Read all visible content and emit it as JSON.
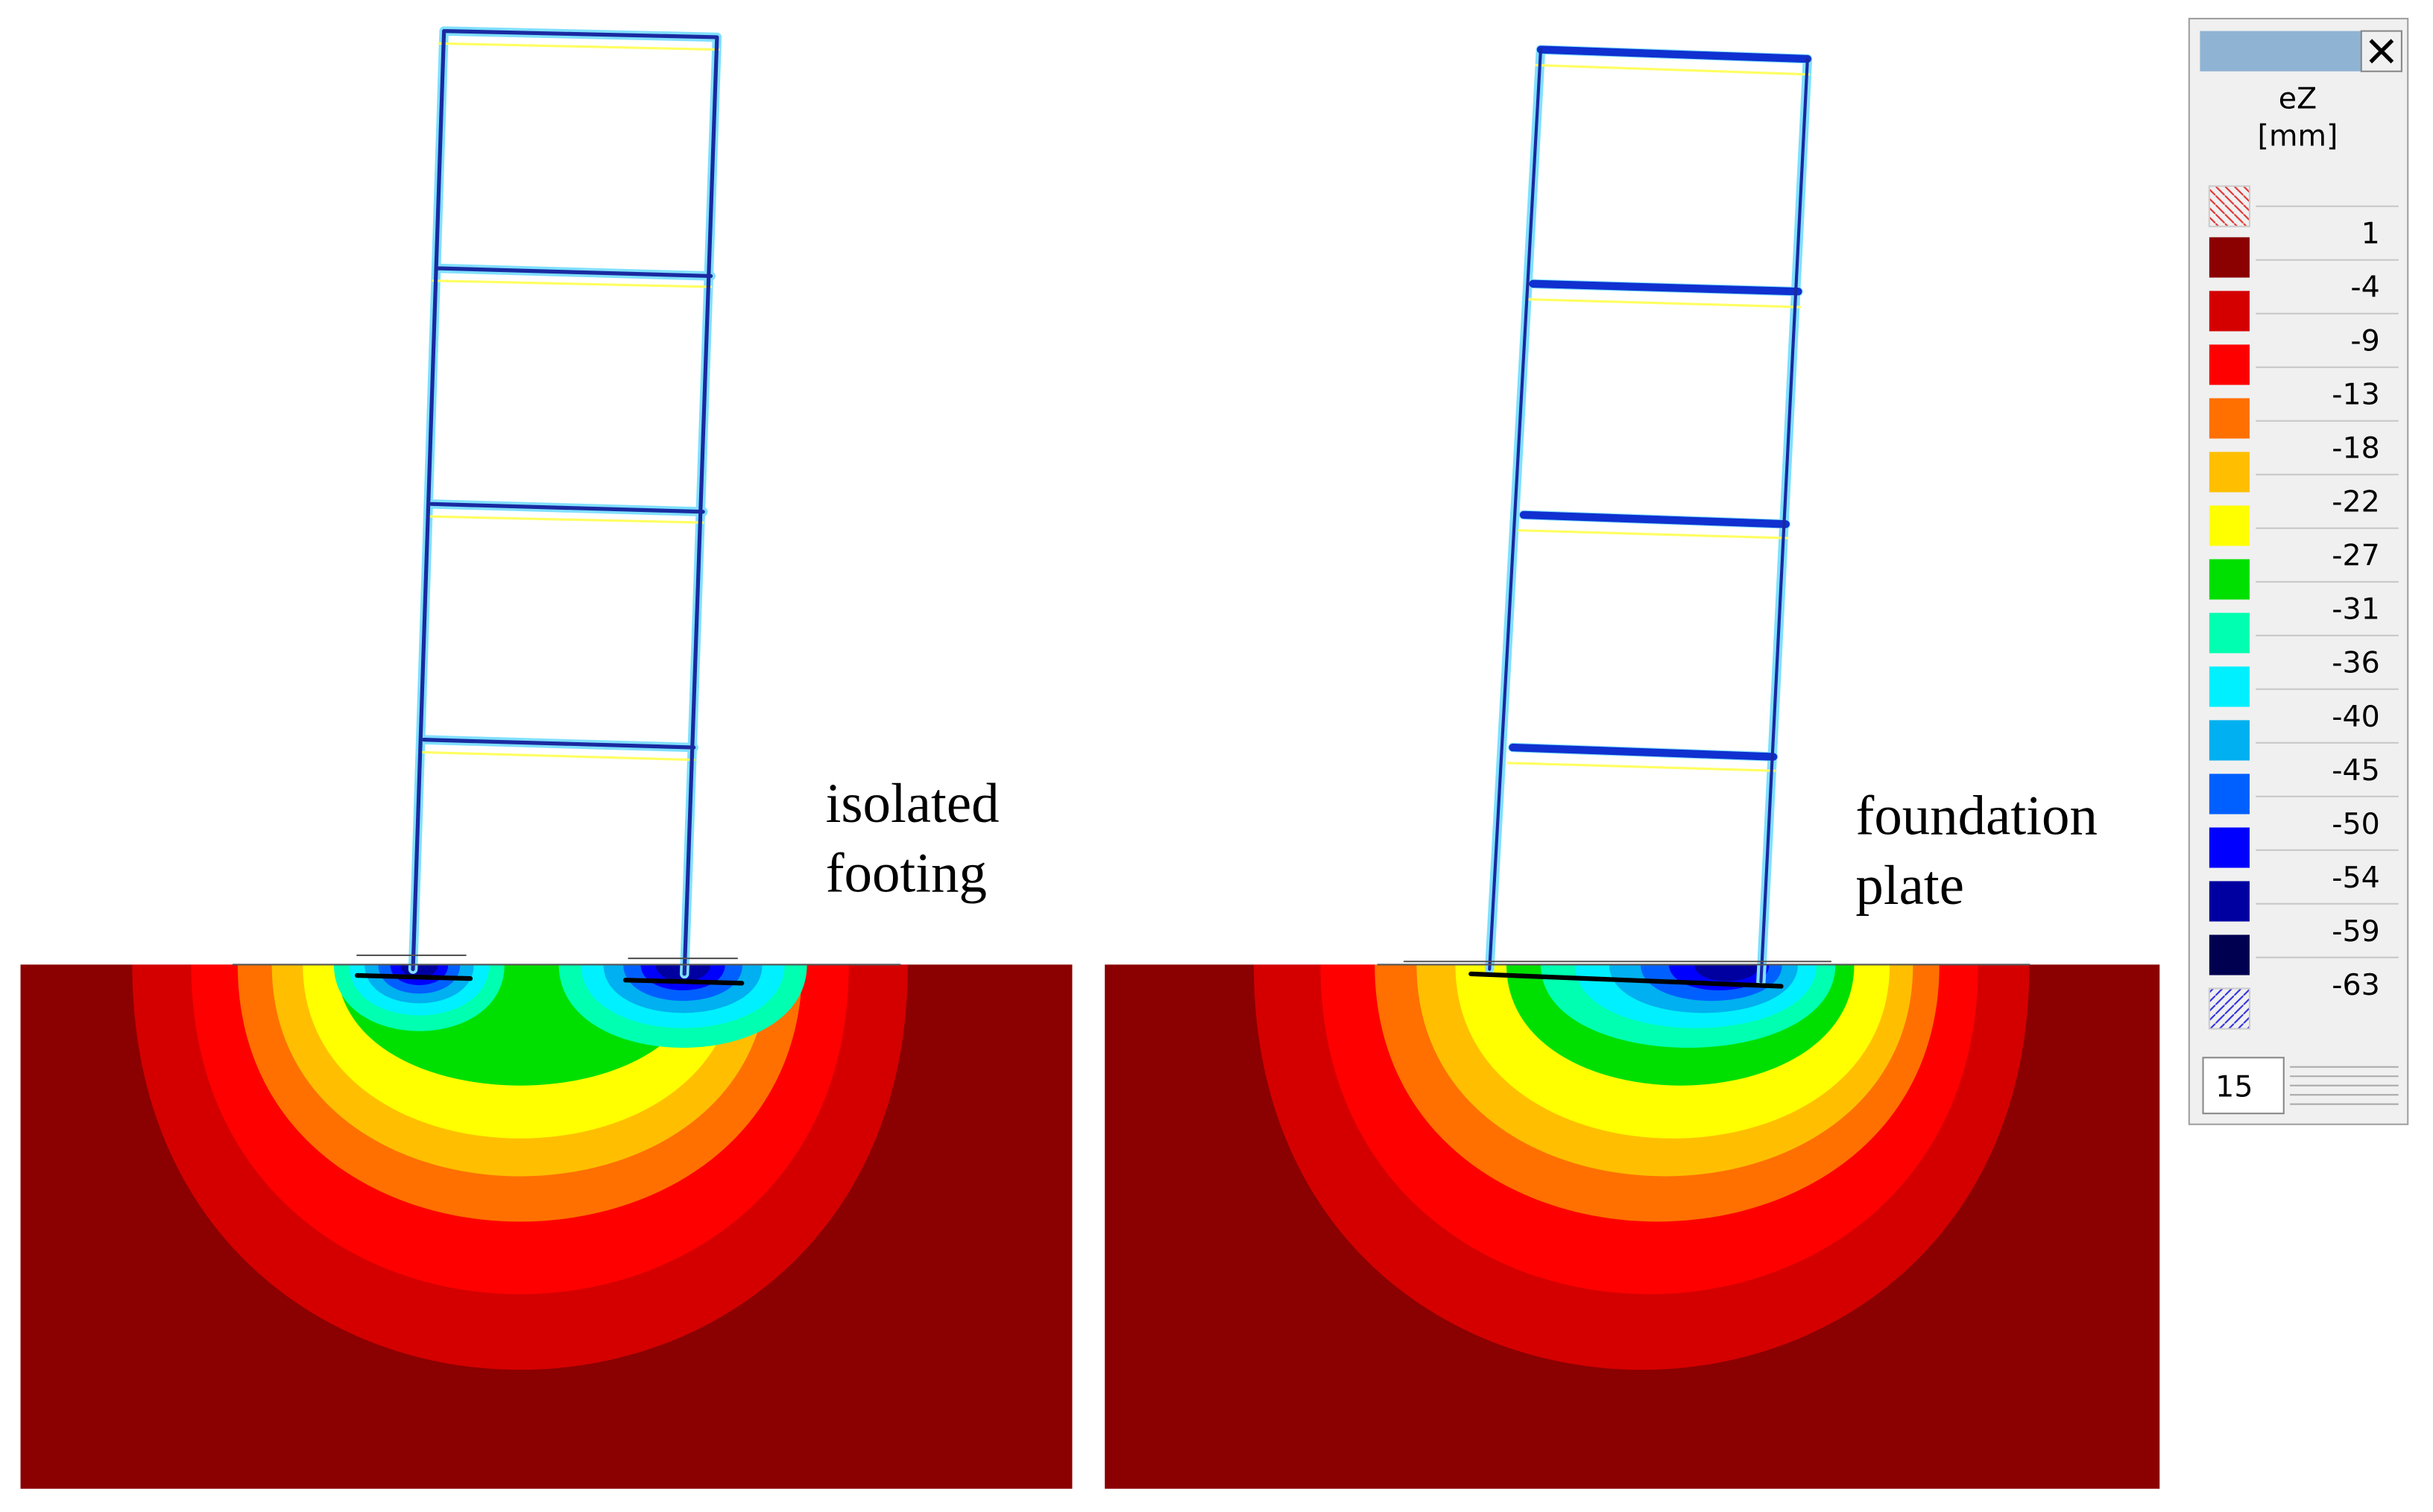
{
  "annotations": {
    "left": [
      "isolated",
      "footing"
    ],
    "right": [
      "foundation",
      "plate"
    ]
  },
  "legend": {
    "title": "eZ",
    "unit": "[mm]",
    "entries": [
      {
        "value": 1,
        "color": "#8b0000"
      },
      {
        "value": -4,
        "color": "#d40000"
      },
      {
        "value": -9,
        "color": "#ff0000"
      },
      {
        "value": -13,
        "color": "#ff7000"
      },
      {
        "value": -18,
        "color": "#ffbf00"
      },
      {
        "value": -22,
        "color": "#ffff00"
      },
      {
        "value": -27,
        "color": "#00e000"
      },
      {
        "value": -31,
        "color": "#00ffb0"
      },
      {
        "value": -36,
        "color": "#00f0ff"
      },
      {
        "value": -40,
        "color": "#00b0f0"
      },
      {
        "value": -45,
        "color": "#0060ff"
      },
      {
        "value": -50,
        "color": "#0000ff"
      },
      {
        "value": -54,
        "color": "#0000a0"
      },
      {
        "value": -59,
        "color": "#000050"
      }
    ],
    "last": -63
  },
  "spinner": "15"
}
